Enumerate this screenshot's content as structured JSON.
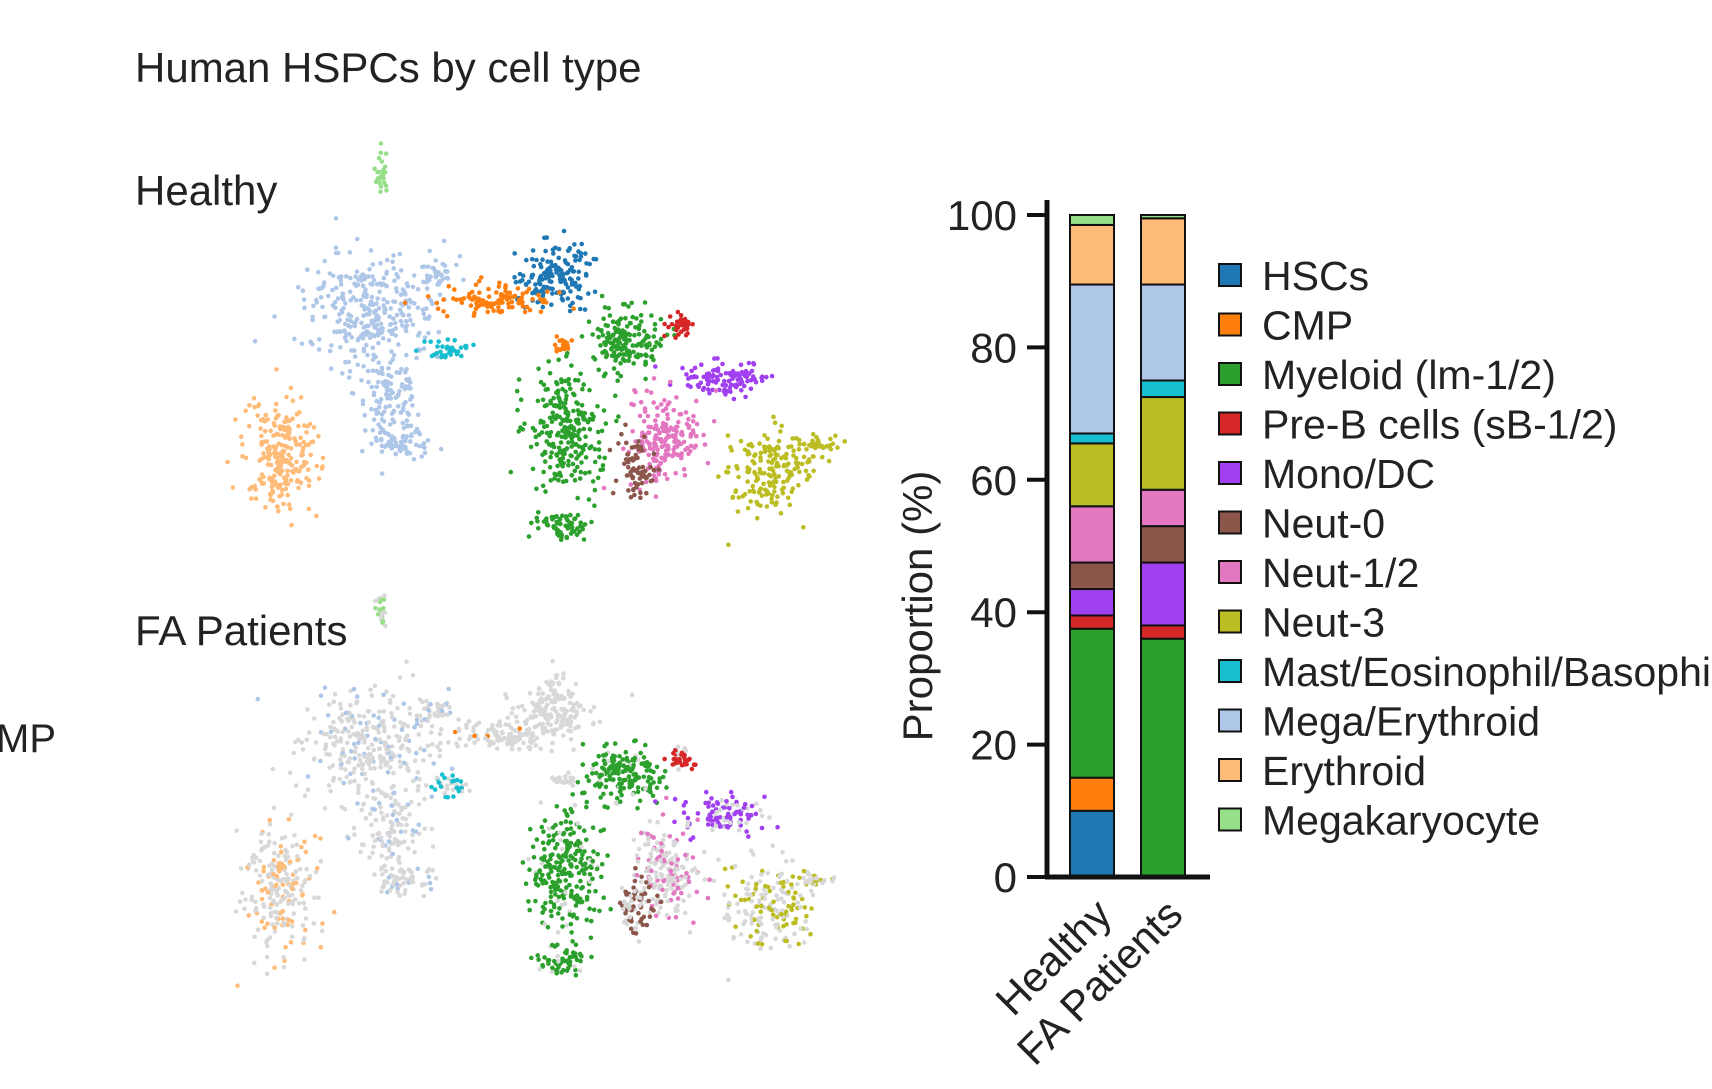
{
  "figure": {
    "title": "Human HSPCs by cell type",
    "left_edge_label": "MP"
  },
  "umap_panels": [
    {
      "label": "Healthy",
      "cluster_colors": {
        "HSCs": "#1f77b4",
        "CMP": "#ff7f0e",
        "Myeloid (lm-1/2)": "#2ca02c",
        "Pre-B cells (sB-1/2)": "#d62728",
        "Mono/DC": "#a040f0",
        "Neut-0": "#8c564b",
        "Neut-1/2": "#e377c2",
        "Neut-3": "#bcbd22",
        "Mast/Eosinophil/Basophil": "#17becf",
        "Mega/Erythroid": "#aec7e8",
        "Erythroid": "#ffbb78",
        "Megakaryocyte": "#98df8a"
      },
      "background_color": "#d8d8d8"
    },
    {
      "label": "FA Patients",
      "background_color": "#d8d8d8"
    }
  ],
  "chart_data": {
    "type": "bar",
    "stacked": true,
    "categories": [
      "Healthy",
      "FA Patients"
    ],
    "ylabel": "Proportion (%)",
    "xlabel": "",
    "ylim": [
      0,
      100
    ],
    "yticks": [
      0,
      20,
      40,
      60,
      80,
      100
    ],
    "legend_position": "right",
    "series": [
      {
        "name": "HSCs",
        "color": "#1f77b4",
        "values": [
          10,
          0
        ]
      },
      {
        "name": "CMP",
        "color": "#ff7f0e",
        "values": [
          5,
          0
        ]
      },
      {
        "name": "Myeloid (lm-1/2)",
        "color": "#2ca02c",
        "values": [
          22.5,
          36
        ]
      },
      {
        "name": "Pre-B cells (sB-1/2)",
        "color": "#d62728",
        "values": [
          2,
          2
        ]
      },
      {
        "name": "Mono/DC",
        "color": "#a040f0",
        "values": [
          4,
          9.5
        ]
      },
      {
        "name": "Neut-0",
        "color": "#8c564b",
        "values": [
          4,
          5.5
        ]
      },
      {
        "name": "Neut-1/2",
        "color": "#e377c2",
        "values": [
          8.5,
          5.5
        ]
      },
      {
        "name": "Neut-3",
        "color": "#bcbd22",
        "values": [
          9.5,
          14
        ]
      },
      {
        "name": "Mast/Eosinophil/Basophil",
        "color": "#17becf",
        "values": [
          1.5,
          2.5
        ]
      },
      {
        "name": "Mega/Erythroid",
        "color": "#aec7e8",
        "values": [
          22.5,
          14.5
        ]
      },
      {
        "name": "Erythroid",
        "color": "#ffbb78",
        "values": [
          9,
          10
        ]
      },
      {
        "name": "Megakaryocyte",
        "color": "#98df8a",
        "values": [
          1.5,
          0.5
        ]
      }
    ]
  }
}
